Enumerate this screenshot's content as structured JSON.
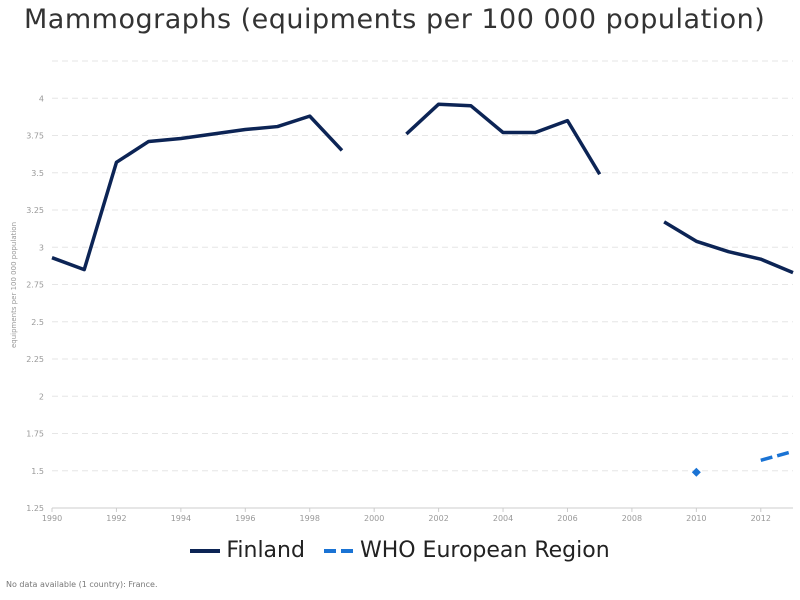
{
  "title": "Mammographs (equipments per 100 000 population)",
  "footnote": "No data available (1 country): France.",
  "colors": {
    "finland": "#0c2455",
    "who_europe": "#1a73d4",
    "grid": "#e6e6e6",
    "tick_text": "#999999"
  },
  "chart_data": {
    "type": "line",
    "title": "Mammographs (equipments per 100 000 population)",
    "xlabel": "",
    "ylabel": "equipments per 100 000 population",
    "xlim": [
      1990,
      2013
    ],
    "ylim": [
      1.25,
      4.25
    ],
    "x_ticks": [
      1990,
      1992,
      1994,
      1996,
      1998,
      2000,
      2002,
      2004,
      2006,
      2008,
      2010,
      2012
    ],
    "x_tick_labels": [
      "1990",
      "1992",
      "1994",
      "1996",
      "1998",
      "2000",
      "2002",
      "2004",
      "2006",
      "2008",
      "2010",
      "2012"
    ],
    "y_ticks": [
      1.25,
      1.5,
      1.75,
      2,
      2.25,
      2.5,
      2.75,
      3,
      3.25,
      3.5,
      3.75,
      4,
      4.25
    ],
    "y_tick_labels": [
      "1.25",
      "1.5",
      "1.75",
      "2",
      "2.25",
      "2.5",
      "2.75",
      "3",
      "3.25",
      "3.5",
      "3.75",
      "4",
      ""
    ],
    "grid": true,
    "legend_position": "bottom",
    "series": [
      {
        "name": "Finland",
        "style": "solid",
        "x": [
          1990,
          1991,
          1992,
          1993,
          1994,
          1995,
          1996,
          1997,
          1998,
          1999,
          2000,
          2001,
          2002,
          2003,
          2004,
          2005,
          2006,
          2007,
          2008,
          2009,
          2010,
          2011,
          2012,
          2013
        ],
        "values": [
          2.93,
          2.85,
          3.57,
          3.71,
          3.73,
          3.76,
          3.79,
          3.81,
          3.88,
          3.65,
          null,
          3.76,
          3.96,
          3.95,
          3.77,
          3.77,
          3.85,
          3.49,
          null,
          3.17,
          3.04,
          2.97,
          2.92,
          2.83
        ]
      },
      {
        "name": "WHO European Region",
        "style": "dashed",
        "x": [
          2010,
          2011,
          2012,
          2013
        ],
        "values": [
          1.49,
          null,
          1.57,
          1.63
        ]
      }
    ]
  }
}
